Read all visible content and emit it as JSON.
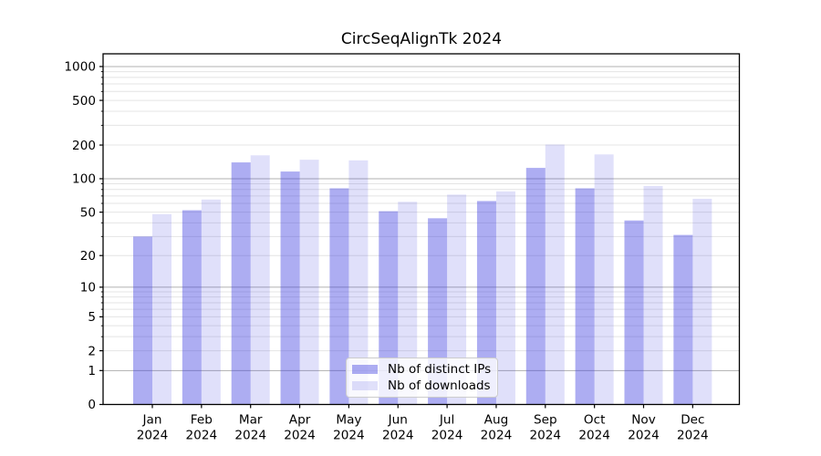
{
  "chart_data": {
    "type": "bar",
    "title": "CircSeqAlignTk 2024",
    "yscale": "log1p",
    "ylim": [
      0,
      1285
    ],
    "yticks": [
      0,
      1,
      2,
      5,
      10,
      20,
      50,
      100,
      200,
      500,
      1000
    ],
    "grid": {
      "major_at": [
        1,
        10,
        100,
        1000
      ],
      "minor": "2-9 per decade",
      "visible": true
    },
    "legend_position": "lower center",
    "categories": [
      {
        "month": "Jan",
        "year": "2024"
      },
      {
        "month": "Feb",
        "year": "2024"
      },
      {
        "month": "Mar",
        "year": "2024"
      },
      {
        "month": "Apr",
        "year": "2024"
      },
      {
        "month": "May",
        "year": "2024"
      },
      {
        "month": "Jun",
        "year": "2024"
      },
      {
        "month": "Jul",
        "year": "2024"
      },
      {
        "month": "Aug",
        "year": "2024"
      },
      {
        "month": "Sep",
        "year": "2024"
      },
      {
        "month": "Oct",
        "year": "2024"
      },
      {
        "month": "Nov",
        "year": "2024"
      },
      {
        "month": "Dec",
        "year": "2024"
      }
    ],
    "series": [
      {
        "name": "Nb of distinct IPs",
        "color": "rgba(60,60,225,0.42)",
        "values": [
          30,
          52,
          140,
          116,
          82,
          51,
          44,
          63,
          125,
          82,
          42,
          31
        ]
      },
      {
        "name": "Nb of downloads",
        "color": "rgba(60,60,225,0.16)",
        "values": [
          48,
          65,
          162,
          148,
          146,
          62,
          72,
          77,
          202,
          165,
          86,
          66
        ]
      }
    ],
    "colors": {
      "grid_major": "#b0b0b0",
      "grid_minor": "#e4e4e4",
      "spine": "#000000",
      "text": "#000000"
    }
  }
}
